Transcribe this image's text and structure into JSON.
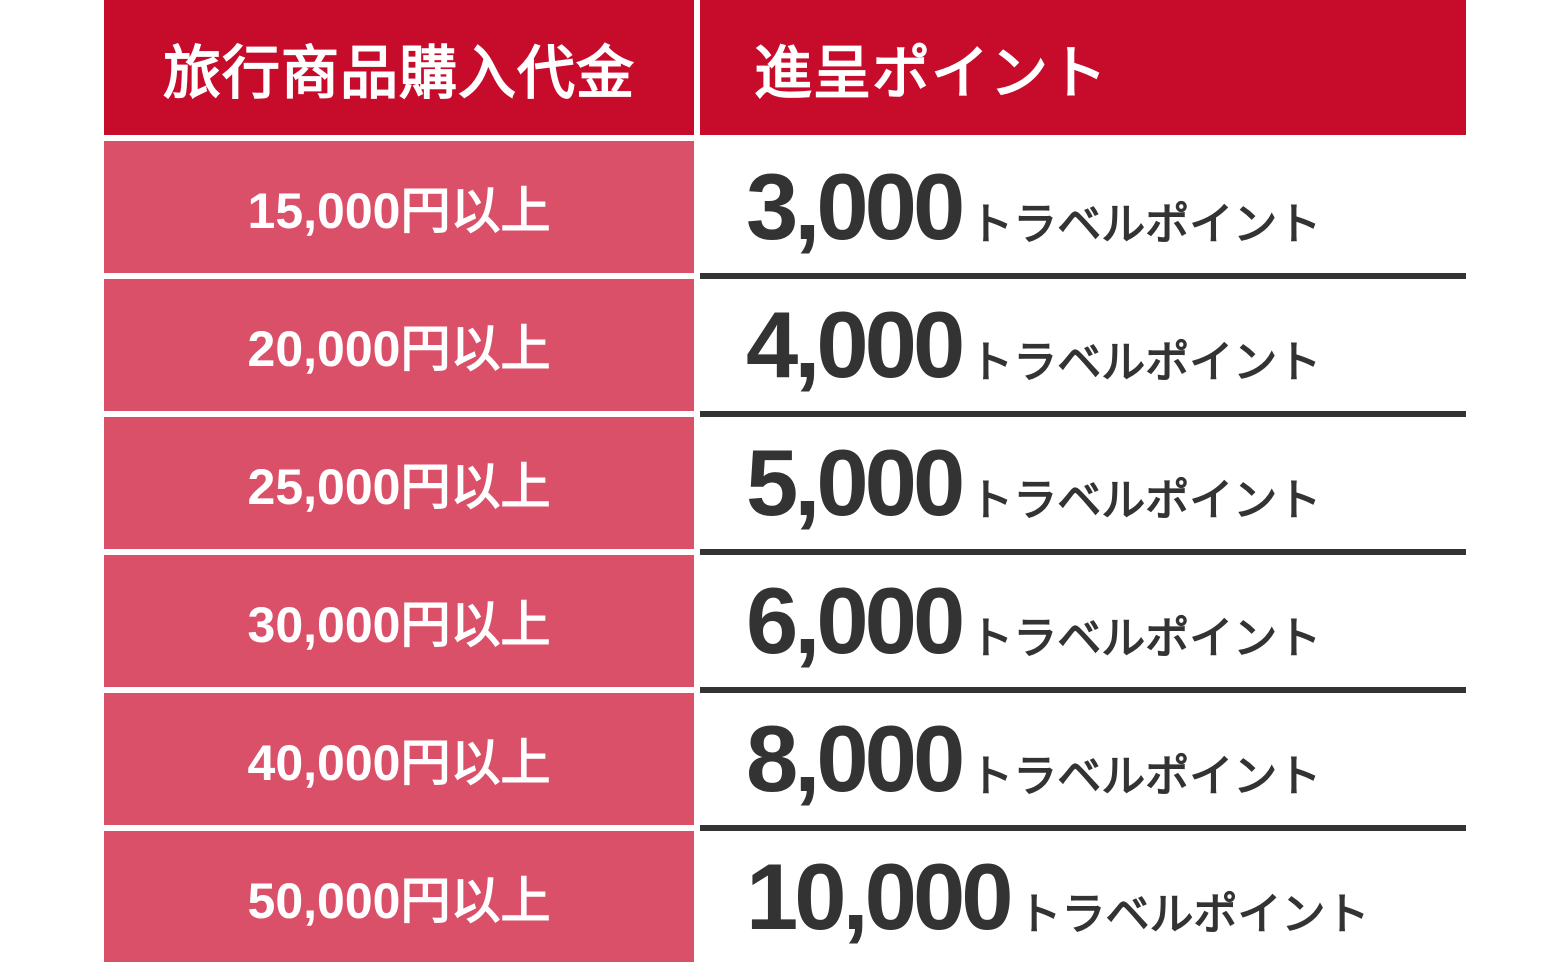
{
  "colors": {
    "header_red": "#C70B2B",
    "row_pink": "#DB5069",
    "ink": "#333333"
  },
  "table": {
    "header": {
      "purchase": "旅行商品購入代金",
      "points": "進呈ポイント"
    },
    "rows": [
      {
        "purchase": "15,000円以上",
        "points": "3,000",
        "unit": "トラベルポイント"
      },
      {
        "purchase": "20,000円以上",
        "points": "4,000",
        "unit": "トラベルポイント"
      },
      {
        "purchase": "25,000円以上",
        "points": "5,000",
        "unit": "トラベルポイント"
      },
      {
        "purchase": "30,000円以上",
        "points": "6,000",
        "unit": "トラベルポイント"
      },
      {
        "purchase": "40,000円以上",
        "points": "8,000",
        "unit": "トラベルポイント"
      },
      {
        "purchase": "50,000円以上",
        "points": "10,000",
        "unit": "トラベルポイント"
      }
    ]
  },
  "chart_data": {
    "type": "table",
    "columns": [
      "旅行商品購入代金",
      "進呈ポイント"
    ],
    "rows": [
      [
        "15,000円以上",
        "3,000トラベルポイント"
      ],
      [
        "20,000円以上",
        "4,000トラベルポイント"
      ],
      [
        "25,000円以上",
        "5,000トラベルポイント"
      ],
      [
        "30,000円以上",
        "6,000トラベルポイント"
      ],
      [
        "40,000円以上",
        "8,000トラベルポイント"
      ],
      [
        "50,000円以上",
        "10,000トラベルポイント"
      ]
    ]
  }
}
